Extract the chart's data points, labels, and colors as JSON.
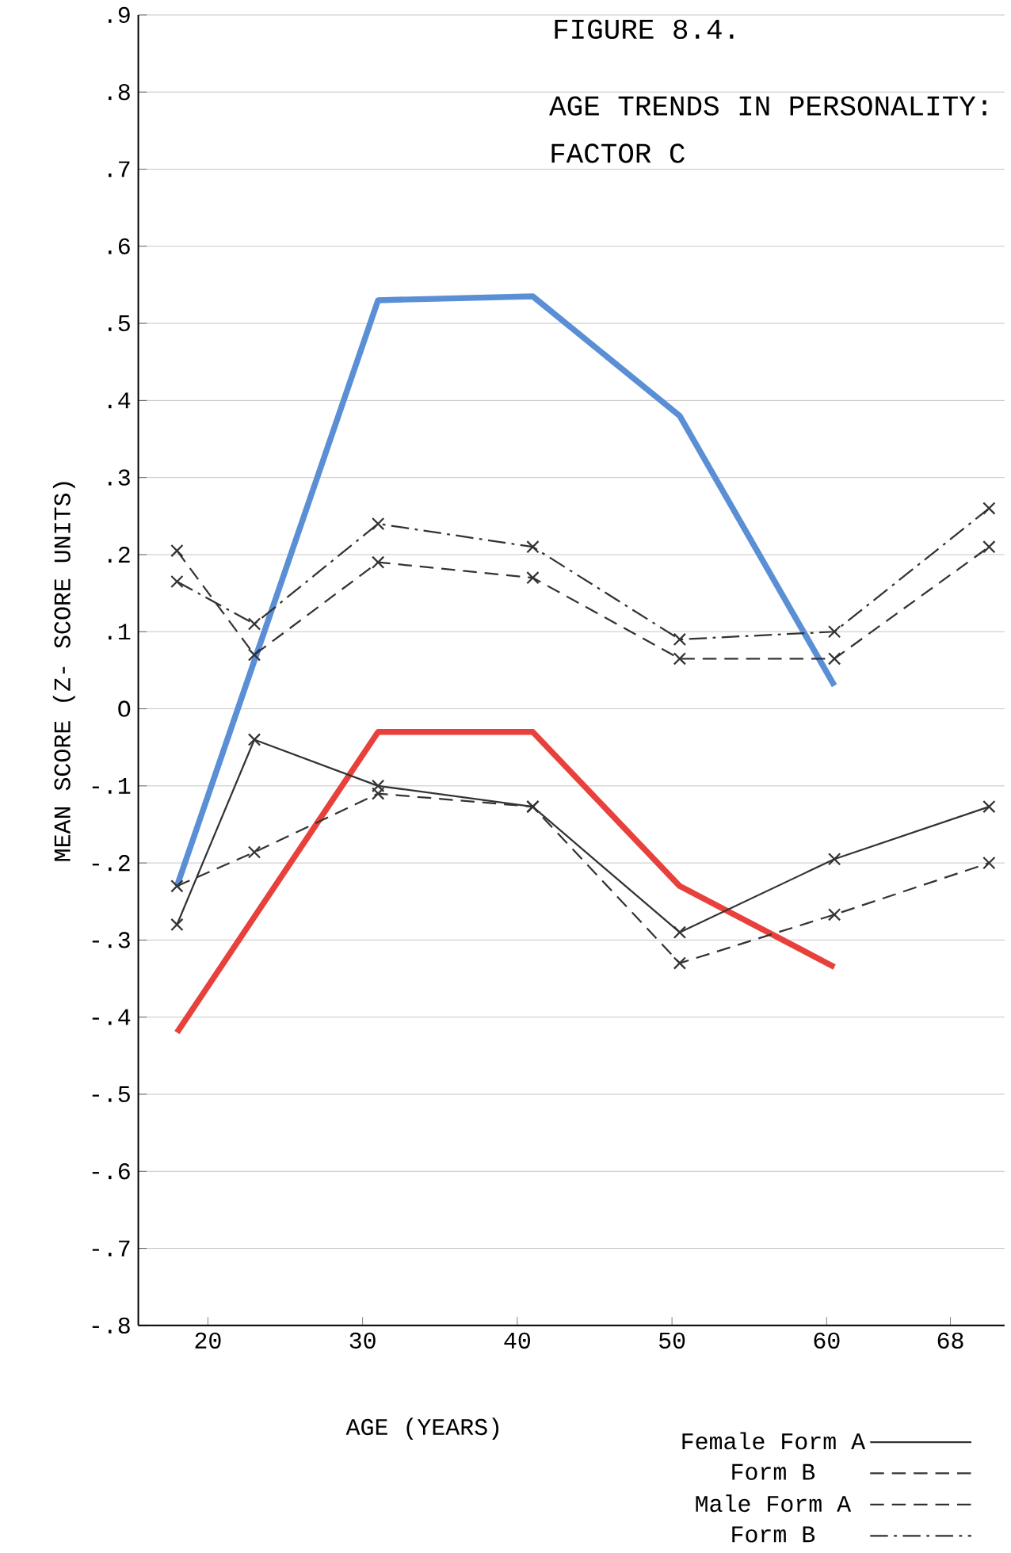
{
  "chart_data": {
    "type": "line",
    "title": "FIGURE 8.4.",
    "subtitle": "AGE TRENDS IN PERSONALITY:",
    "annotations": [
      "FACTOR C"
    ],
    "xlabel": "AGE (YEARS)",
    "ylabel": "MEAN SCORE (Z- SCORE UNITS)",
    "x": [
      18,
      23,
      31,
      41,
      50.5,
      60.5,
      70.5
    ],
    "xlim": [
      15.5,
      71.5
    ],
    "xticks": [
      20,
      30,
      40,
      50,
      60,
      68
    ],
    "ylim": [
      -0.8,
      0.9
    ],
    "yticks": [
      {
        "value": 0.9,
        "label": ".9"
      },
      {
        "value": 0.8,
        "label": ".8"
      },
      {
        "value": 0.7,
        "label": ".7"
      },
      {
        "value": 0.6,
        "label": ".6"
      },
      {
        "value": 0.5,
        "label": ".5"
      },
      {
        "value": 0.4,
        "label": ".4"
      },
      {
        "value": 0.3,
        "label": ".3"
      },
      {
        "value": 0.2,
        "label": ".2"
      },
      {
        "value": 0.1,
        "label": ".1"
      },
      {
        "value": 0,
        "label": "O"
      },
      {
        "value": -0.1,
        "label": "-.1"
      },
      {
        "value": -0.2,
        "label": "-.2"
      },
      {
        "value": -0.3,
        "label": "-.3"
      },
      {
        "value": -0.4,
        "label": "-.4"
      },
      {
        "value": -0.5,
        "label": "-.5"
      },
      {
        "value": -0.6,
        "label": "-.6"
      },
      {
        "value": -0.7,
        "label": "-.7"
      },
      {
        "value": -0.8,
        "label": "-.8"
      }
    ],
    "grid": "y",
    "legend": "bottom right",
    "series": [
      {
        "color": "#5a8fd6",
        "marker": "none",
        "line_style": "solid",
        "x": [
          18,
          31,
          41,
          50.5,
          60.5
        ],
        "values": [
          -0.23,
          0.53,
          0.535,
          0.38,
          0.03
        ]
      },
      {
        "color": "#e8413c",
        "marker": "none",
        "line_style": "solid",
        "x": [
          18,
          31,
          41,
          50.5,
          60.5
        ],
        "values": [
          -0.42,
          -0.03,
          -0.03,
          -0.23,
          -0.335
        ]
      },
      {
        "name": "Female Form A",
        "color": "#333333",
        "marker": "cross",
        "line_style": "solid",
        "values": [
          -0.28,
          -0.04,
          -0.1,
          -0.127,
          -0.29,
          -0.195,
          -0.127
        ]
      },
      {
        "name": "Form B",
        "color": "#333333",
        "marker": "cross",
        "line_style": "dashed",
        "values": [
          -0.23,
          -0.186,
          -0.11,
          -0.127,
          -0.33,
          -0.267,
          -0.2
        ]
      },
      {
        "name": "Male Form A",
        "color": "#333333",
        "marker": "cross",
        "line_style": "dashed",
        "values": [
          0.205,
          0.07,
          0.19,
          0.17,
          0.065,
          0.065,
          0.21
        ]
      },
      {
        "name": "Form B",
        "color": "#333333",
        "marker": "cross",
        "line_style": "dashdot",
        "values": [
          0.165,
          0.11,
          0.24,
          0.21,
          0.09,
          0.1,
          0.26
        ]
      }
    ]
  }
}
